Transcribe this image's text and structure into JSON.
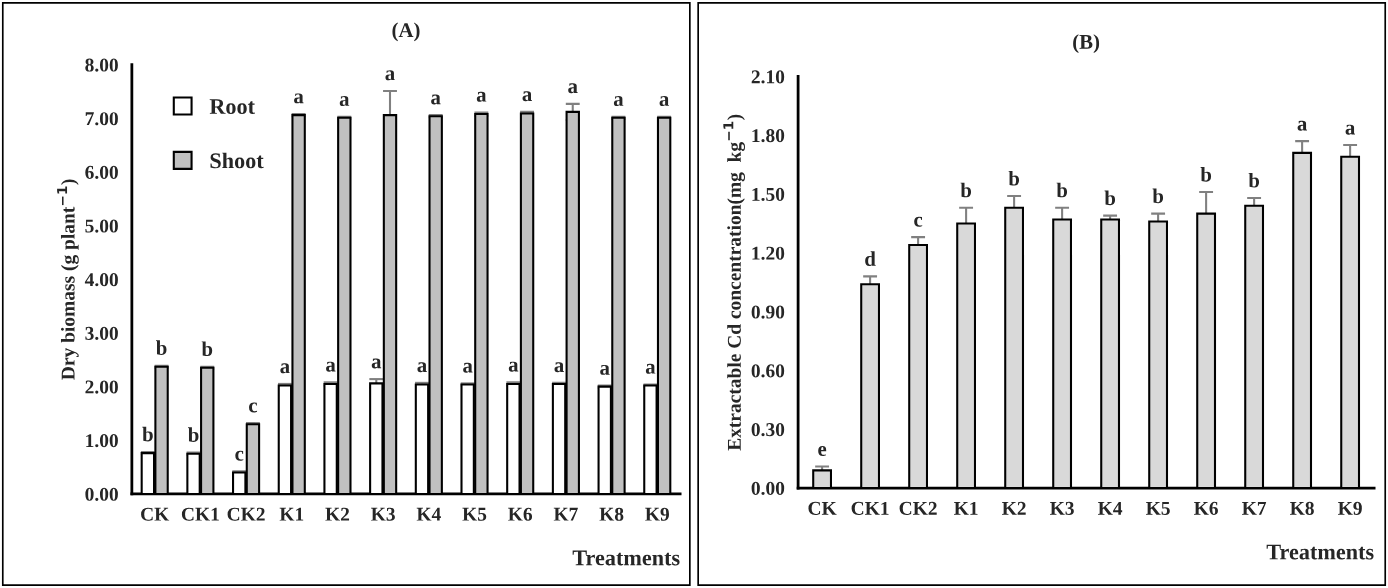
{
  "chart_data": [
    {
      "type": "bar",
      "title": "(A)",
      "ylabel": "Dry biomass (g plant$^{−1}$)",
      "xlabel": "Treatments",
      "categories": [
        "CK",
        "CK1",
        "CK2",
        "K1",
        "K2",
        "K3",
        "K4",
        "K5",
        "K6",
        "K7",
        "K8",
        "K9"
      ],
      "series": [
        {
          "name": "Root",
          "color": "#ffffff",
          "values": [
            0.76,
            0.75,
            0.4,
            2.02,
            2.05,
            2.06,
            2.04,
            2.04,
            2.05,
            2.05,
            2.0,
            2.02
          ],
          "errors": [
            0.02,
            0.02,
            0.02,
            0.03,
            0.03,
            0.08,
            0.03,
            0.02,
            0.03,
            0.02,
            0.02,
            0.02
          ],
          "value_labels": [
            "b",
            "b",
            "c",
            "a",
            "a",
            "a",
            "a",
            "a",
            "a",
            "a",
            "a",
            "a"
          ]
        },
        {
          "name": "Shoot",
          "color": "#c0c0c0",
          "values": [
            2.37,
            2.35,
            1.3,
            7.06,
            7.01,
            7.06,
            7.04,
            7.08,
            7.09,
            7.12,
            7.01,
            7.01
          ],
          "errors": [
            0.02,
            0.02,
            0.02,
            0.02,
            0.02,
            0.45,
            0.02,
            0.03,
            0.03,
            0.15,
            0.02,
            0.02
          ],
          "value_labels": [
            "b",
            "b",
            "c",
            "a",
            "a",
            "a",
            "a",
            "a",
            "a",
            "a",
            "a",
            "a"
          ]
        }
      ],
      "ylim": [
        0,
        8
      ],
      "yticks": [
        {
          "value": 0,
          "label": "0.00"
        },
        {
          "value": 1,
          "label": "1.00"
        },
        {
          "value": 2,
          "label": "2.00"
        },
        {
          "value": 3,
          "label": "3.00"
        },
        {
          "value": 4,
          "label": "4.00"
        },
        {
          "value": 5,
          "label": "5.00"
        },
        {
          "value": 6,
          "label": "6.00"
        },
        {
          "value": 7,
          "label": "7.00"
        },
        {
          "value": 8,
          "label": "8.00"
        }
      ],
      "grid": false,
      "legend": "top left"
    },
    {
      "type": "bar",
      "title": "(B)",
      "ylabel": "Extractable Cd concentration(mg  kg$^{−1}$)",
      "xlabel": "Treatments",
      "categories": [
        "CK",
        "CK1",
        "CK2",
        "K1",
        "K2",
        "K3",
        "K4",
        "K5",
        "K6",
        "K7",
        "K8",
        "K9"
      ],
      "series": [
        {
          "color": "#d9d9d9",
          "values": [
            0.09,
            1.04,
            1.24,
            1.35,
            1.43,
            1.37,
            1.37,
            1.36,
            1.4,
            1.44,
            1.71,
            1.69
          ],
          "errors": [
            0.02,
            0.04,
            0.04,
            0.08,
            0.06,
            0.06,
            0.02,
            0.04,
            0.11,
            0.04,
            0.06,
            0.06
          ],
          "value_labels": [
            "e",
            "d",
            "c",
            "b",
            "b",
            "b",
            "b",
            "b",
            "b",
            "b",
            "a",
            "a"
          ]
        }
      ],
      "ylim": [
        0,
        2.1
      ],
      "yticks": [
        {
          "value": 0,
          "label": "0.00"
        },
        {
          "value": 0.3,
          "label": "0.30"
        },
        {
          "value": 0.6,
          "label": "0.60"
        },
        {
          "value": 0.9,
          "label": "0.90"
        },
        {
          "value": 1.2,
          "label": "1.20"
        },
        {
          "value": 1.5,
          "label": "1.50"
        },
        {
          "value": 1.8,
          "label": "1.80"
        },
        {
          "value": 2.1,
          "label": "2.10"
        }
      ],
      "grid": false,
      "legend": false
    }
  ]
}
